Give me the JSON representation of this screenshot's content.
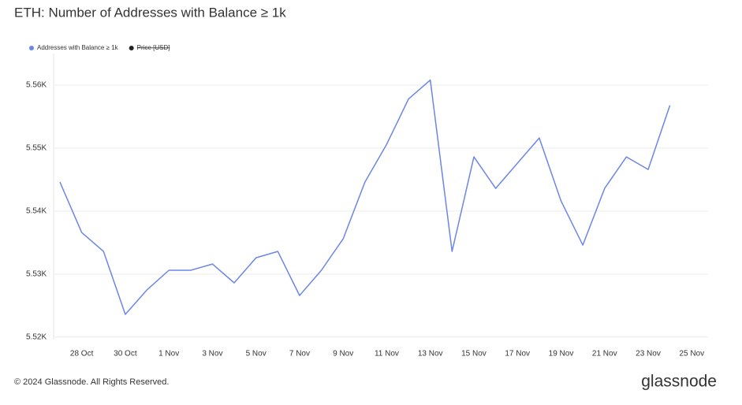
{
  "chart_data": {
    "type": "line",
    "title": "ETH: Number of Addresses with Balance ≥ 1k",
    "categories": [
      null,
      "28 Oct",
      null,
      "30 Oct",
      null,
      "1 Nov",
      null,
      "3 Nov",
      null,
      "5 Nov",
      null,
      "7 Nov",
      null,
      "9 Nov",
      null,
      "11 Nov",
      null,
      "13 Nov",
      null,
      "15 Nov",
      null,
      "17 Nov",
      null,
      "19 Nov",
      null,
      "21 Nov",
      null,
      "23 Nov",
      null,
      "25 Nov"
    ],
    "series": [
      {
        "name": "Addresses with Balance ≥ 1k",
        "color": "#6b86e8",
        "values": [
          5544.6,
          5536.6,
          5533.6,
          5523.6,
          5527.5,
          5530.6,
          5530.6,
          5531.6,
          5528.6,
          5532.6,
          5533.6,
          5526.6,
          5530.6,
          5535.6,
          5544.6,
          5550.6,
          5557.8,
          5560.8,
          5533.6,
          5548.6,
          5543.6,
          5547.6,
          5551.6,
          5541.6,
          5534.6,
          5543.6,
          5548.6,
          5546.6,
          5556.8,
          null
        ]
      },
      {
        "name": "Price [USD]",
        "color": "#222222",
        "hidden": true,
        "values": [
          null,
          null,
          null,
          null,
          null,
          null,
          null,
          null,
          null,
          null,
          null,
          null,
          null,
          null,
          null,
          null,
          null,
          null,
          null,
          null,
          null,
          null,
          null,
          null,
          null,
          null,
          null,
          null,
          null,
          null
        ]
      }
    ],
    "ylim": [
      5519.6,
      5565
    ],
    "yticks": [
      {
        "value": 5520,
        "label": "5.52K"
      },
      {
        "value": 5530,
        "label": "5.53K"
      },
      {
        "value": 5540,
        "label": "5.54K"
      },
      {
        "value": 5550,
        "label": "5.55K"
      },
      {
        "value": 5560,
        "label": "5.56K"
      }
    ],
    "grid": true
  },
  "footer": {
    "copyright": "© 2024 Glassnode. All Rights Reserved.",
    "logo": "glassnode"
  }
}
